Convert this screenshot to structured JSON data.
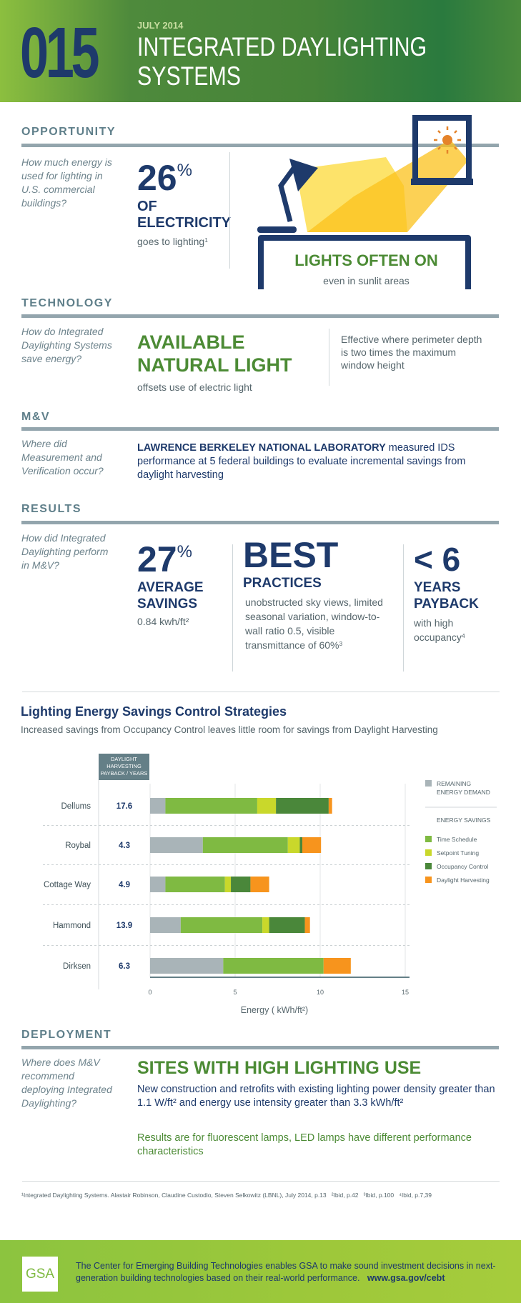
{
  "header": {
    "number": "015",
    "date": "JULY 2014",
    "title_line1": "INTEGRATED DAYLIGHTING",
    "title_line2": "SYSTEMS"
  },
  "opportunity": {
    "heading": "OPPORTUNITY",
    "question": "How much energy is used for lighting in U.S. commercial buildings?",
    "stat": "26",
    "stat_unit": "%",
    "stat_label1": "OF",
    "stat_label2": "ELECTRICITY",
    "stat_sub": "goes to lighting",
    "stat_sub_note": "1",
    "callout": "LIGHTS OFTEN ON",
    "callout_sub": "even in sunlit areas"
  },
  "technology": {
    "heading": "TECHNOLOGY",
    "question": "How do Integrated Daylighting Systems save energy?",
    "headline1": "AVAILABLE",
    "headline2": "NATURAL LIGHT",
    "sub": "offsets use of electric light",
    "side": "Effective where perimeter depth is two times the maximum window height"
  },
  "mv": {
    "heading": "M&V",
    "question": "Where did Measurement and Verification occur?",
    "org": "LAWRENCE BERKELEY NATIONAL LABORATORY",
    "text": " measured IDS performance at 5 federal buildings to evaluate incremental savings from daylight harvesting"
  },
  "results": {
    "heading": "RESULTS",
    "question": "How did Integrated Daylighting perform in M&V?",
    "col1": {
      "stat": "27",
      "unit": "%",
      "label1": "AVERAGE",
      "label2": "SAVINGS",
      "sub": "0.84 kwh/ft²"
    },
    "col2": {
      "stat": "BEST",
      "label": "PRACTICES",
      "sub": "unobstructed sky views, limited seasonal variation, window-to-wall ratio 0.5, visible transmittance of 60%",
      "note": "3"
    },
    "col3": {
      "stat": "< 6",
      "label1": "YEARS",
      "label2": "PAYBACK",
      "sub": "with high occupancy",
      "note": "4"
    }
  },
  "chart_data": {
    "type": "bar",
    "orientation": "horizontal",
    "stacked": true,
    "title": "Lighting Energy Savings Control Strategies",
    "subtitle": "Increased savings from Occupancy Control leaves little room for savings from Daylight Harvesting",
    "xlabel": "Energy ( kWh/ft²)",
    "xlim": [
      0,
      15
    ],
    "xticks": [
      "0",
      "5",
      "10",
      "15"
    ],
    "table_header": "DAYLIGHT HARVESTING PAYBACK / YEARS",
    "categories": [
      "Dellums",
      "Roybal",
      "Cottage Way",
      "Hammond",
      "Dirksen"
    ],
    "payback": [
      "17.6",
      "4.3",
      "4.9",
      "13.9",
      "6.3"
    ],
    "series": [
      {
        "name": "REMAINING ENERGY DEMAND",
        "color": "#a9b4b8",
        "values": [
          0.9,
          3.1,
          0.9,
          1.8,
          4.3
        ]
      },
      {
        "name": "Time Schedule",
        "color": "#7fba42",
        "values": [
          5.4,
          5.0,
          3.5,
          4.8,
          5.9
        ]
      },
      {
        "name": "Setpoint Tuning",
        "color": "#c9d82b",
        "values": [
          1.1,
          0.7,
          0.35,
          0.4,
          0
        ]
      },
      {
        "name": "Occupancy Control",
        "color": "#4a873a",
        "values": [
          3.1,
          0.15,
          1.15,
          2.1,
          0
        ]
      },
      {
        "name": "Daylight Harvesting",
        "color": "#f7941d",
        "values": [
          0.2,
          1.1,
          1.1,
          0.3,
          1.6
        ]
      }
    ],
    "legend_group": "ENERGY SAVINGS",
    "legend": "right",
    "grid": true
  },
  "deployment": {
    "heading": "DEPLOYMENT",
    "question": "Where does M&V recommend deploying Integrated Daylighting?",
    "headline": "SITES WITH HIGH LIGHTING USE",
    "text": "New construction and retrofits with existing lighting power density greater than 1.1 W/ft² and energy use intensity greater than 3.3 kWh/ft²",
    "note": "Results are for fluorescent lamps, LED lamps have different performance characteristics"
  },
  "footnote": "¹Integrated Daylighting Systems. Alastair Robinson, Claudine Custodio, Steven Selkowitz (LBNL), July 2014, p.13   ²Ibid, p.42   ³Ibid, p.100   ⁴Ibid, p.7,39",
  "footer": {
    "logo": "GSA",
    "text": "The Center for Emerging Building Technologies enables GSA to make sound investment decisions in next-generation building technologies based on their real-world performance.",
    "link": "www.gsa.gov/cebt"
  }
}
